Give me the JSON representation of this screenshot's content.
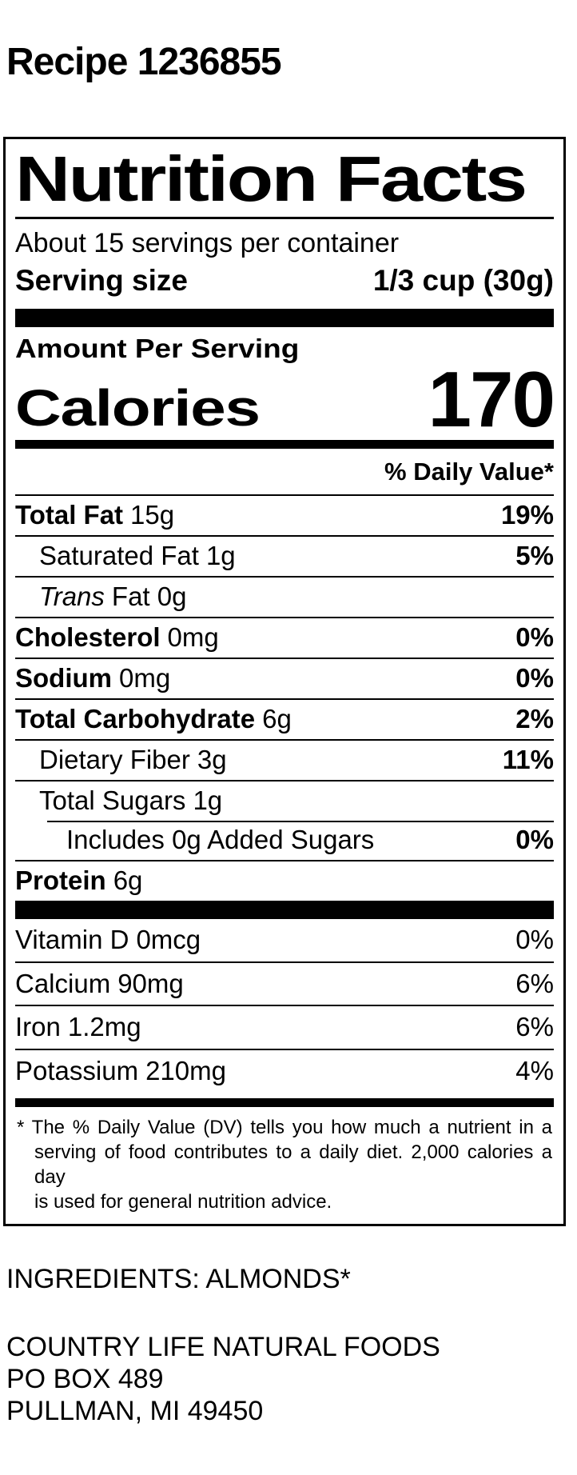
{
  "page_title": "Recipe 1236855",
  "label": {
    "title": "Nutrition Facts",
    "servings_per_container": "About 15 servings per container",
    "serving_size": {
      "label": "Serving size",
      "value": "1/3 cup (30g)"
    },
    "amount_per_serving": "Amount Per Serving",
    "calories": {
      "label": "Calories",
      "value": "170"
    },
    "daily_value_header": "% Daily Value*",
    "rows": [
      {
        "name": "Total Fat",
        "amount": "15g",
        "dv": "19%"
      },
      {
        "name": "Saturated Fat",
        "amount": "1g",
        "dv": "5%"
      },
      {
        "name": "Trans",
        "amount": "Fat 0g",
        "dv": ""
      },
      {
        "name": "Cholesterol",
        "amount": "0mg",
        "dv": "0%"
      },
      {
        "name": "Sodium",
        "amount": "0mg",
        "dv": "0%"
      },
      {
        "name": "Total Carbohydrate",
        "amount": "6g",
        "dv": "2%"
      },
      {
        "name": "Dietary Fiber",
        "amount": "3g",
        "dv": "11%"
      },
      {
        "name": "Total Sugars",
        "amount": "1g",
        "dv": ""
      },
      {
        "name": "Includes 0g Added Sugars",
        "amount": "",
        "dv": "0%"
      },
      {
        "name": "Protein",
        "amount": "6g",
        "dv": ""
      }
    ],
    "vitamins": [
      {
        "name": "Vitamin D",
        "amount": "0mcg",
        "dv": "0%"
      },
      {
        "name": "Calcium",
        "amount": "90mg",
        "dv": "6%"
      },
      {
        "name": "Iron",
        "amount": "1.2mg",
        "dv": "6%"
      },
      {
        "name": "Potassium",
        "amount": "210mg",
        "dv": "4%"
      }
    ],
    "footnote_marker": "*",
    "footnote_lines": [
      "The % Daily Value (DV) tells you how much a nutrient in a",
      "serving of food contributes to a daily diet. 2,000 calories a day",
      "is used for general nutrition advice."
    ]
  },
  "footer": {
    "ingredients": "INGREDIENTS: ALMONDS*",
    "address": [
      "COUNTRY LIFE NATURAL FOODS",
      "PO BOX 489",
      "PULLMAN, MI 49450"
    ]
  },
  "colors": {
    "text": "#000000",
    "background": "#ffffff"
  }
}
